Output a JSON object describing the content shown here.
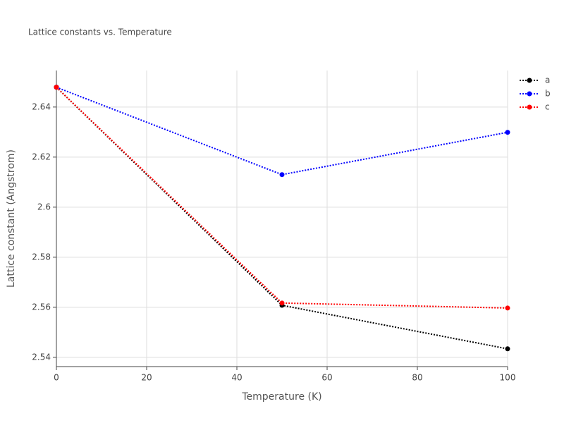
{
  "chart_data": {
    "type": "line",
    "title": "Lattice constants vs. Temperature",
    "x_label": "Temperature (K)",
    "y_label": "Lattice constant (Angstrom)",
    "x": [
      0,
      50,
      100
    ],
    "series": [
      {
        "name": "a",
        "color": "#000000",
        "values": [
          2.6479,
          2.5608,
          2.5434
        ]
      },
      {
        "name": "b",
        "color": "#0000ff",
        "values": [
          2.6479,
          2.613,
          2.6299
        ]
      },
      {
        "name": "c",
        "color": "#ff0000",
        "values": [
          2.6479,
          2.5617,
          2.5597
        ]
      }
    ],
    "xlim": [
      0,
      100
    ],
    "xticks": [
      0,
      20,
      40,
      60,
      80,
      100
    ],
    "ylim": [
      2.5363,
      2.6546
    ],
    "yticks": [
      2.54,
      2.56,
      2.58,
      2.6,
      2.62,
      2.64
    ],
    "grid": true,
    "legend": "top-right"
  }
}
